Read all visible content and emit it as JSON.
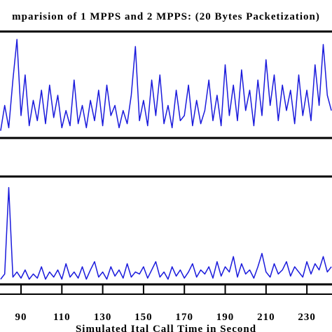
{
  "chart_data": [
    {
      "type": "line",
      "title": "mparision of 1 MPPS and 2 MPPS: (20 Bytes Packetization)",
      "x": [
        80,
        82,
        84,
        86,
        88,
        90,
        92,
        94,
        96,
        98,
        100,
        102,
        104,
        106,
        108,
        110,
        112,
        114,
        116,
        118,
        120,
        122,
        124,
        126,
        128,
        130,
        132,
        134,
        136,
        138,
        140,
        142,
        144,
        146,
        148,
        150,
        152,
        154,
        156,
        158,
        160,
        162,
        164,
        166,
        168,
        170,
        172,
        174,
        176,
        178,
        180,
        182,
        184,
        186,
        188,
        190,
        192,
        194,
        196,
        198,
        200,
        202,
        204,
        206,
        208,
        210,
        212,
        214,
        216,
        218,
        220,
        222,
        224,
        226,
        228,
        230,
        232,
        234,
        236,
        238,
        240,
        242
      ],
      "series": [
        {
          "color": "#1a1adc",
          "values": [
            5,
            30,
            8,
            55,
            95,
            20,
            60,
            10,
            35,
            15,
            45,
            12,
            50,
            18,
            40,
            8,
            25,
            10,
            55,
            12,
            30,
            8,
            35,
            15,
            45,
            10,
            50,
            20,
            30,
            8,
            25,
            12,
            40,
            88,
            15,
            35,
            10,
            55,
            20,
            60,
            12,
            30,
            8,
            45,
            15,
            20,
            50,
            10,
            35,
            12,
            25,
            55,
            15,
            40,
            10,
            70,
            20,
            50,
            15,
            65,
            25,
            45,
            10,
            55,
            20,
            75,
            30,
            60,
            15,
            50,
            25,
            45,
            12,
            60,
            20,
            45,
            15,
            70,
            30,
            90,
            40,
            25
          ]
        }
      ],
      "xlim": [
        79.7,
        242.3
      ],
      "ylim": [
        0,
        100
      ]
    },
    {
      "type": "line",
      "xlabel": "Simulated Ital Call Time in Second",
      "x": [
        80,
        82,
        84,
        86,
        88,
        90,
        92,
        94,
        96,
        98,
        100,
        102,
        104,
        106,
        108,
        110,
        112,
        114,
        116,
        118,
        120,
        122,
        124,
        126,
        128,
        130,
        132,
        134,
        136,
        138,
        140,
        142,
        144,
        146,
        148,
        150,
        152,
        154,
        156,
        158,
        160,
        162,
        164,
        166,
        168,
        170,
        172,
        174,
        176,
        178,
        180,
        182,
        184,
        186,
        188,
        190,
        192,
        194,
        196,
        198,
        200,
        202,
        204,
        206,
        208,
        210,
        212,
        214,
        216,
        218,
        220,
        222,
        224,
        226,
        228,
        230,
        232,
        234,
        236,
        238,
        240,
        242
      ],
      "series": [
        {
          "color": "#1a1adc",
          "values": [
            3,
            8,
            92,
            5,
            10,
            4,
            12,
            3,
            8,
            4,
            15,
            3,
            10,
            5,
            12,
            3,
            18,
            5,
            10,
            4,
            15,
            3,
            12,
            20,
            5,
            10,
            3,
            15,
            6,
            12,
            4,
            18,
            5,
            10,
            8,
            15,
            4,
            12,
            20,
            5,
            10,
            3,
            15,
            6,
            12,
            4,
            10,
            18,
            5,
            12,
            8,
            15,
            4,
            20,
            6,
            15,
            10,
            25,
            5,
            18,
            8,
            12,
            4,
            15,
            28,
            10,
            5,
            18,
            8,
            12,
            20,
            6,
            15,
            10,
            5,
            20,
            8,
            18,
            12,
            25,
            10,
            15
          ]
        }
      ],
      "xlim": [
        79.7,
        242.3
      ],
      "ylim": [
        0,
        100
      ],
      "xticks": [
        90,
        110,
        130,
        150,
        170,
        190,
        210,
        230
      ]
    }
  ]
}
